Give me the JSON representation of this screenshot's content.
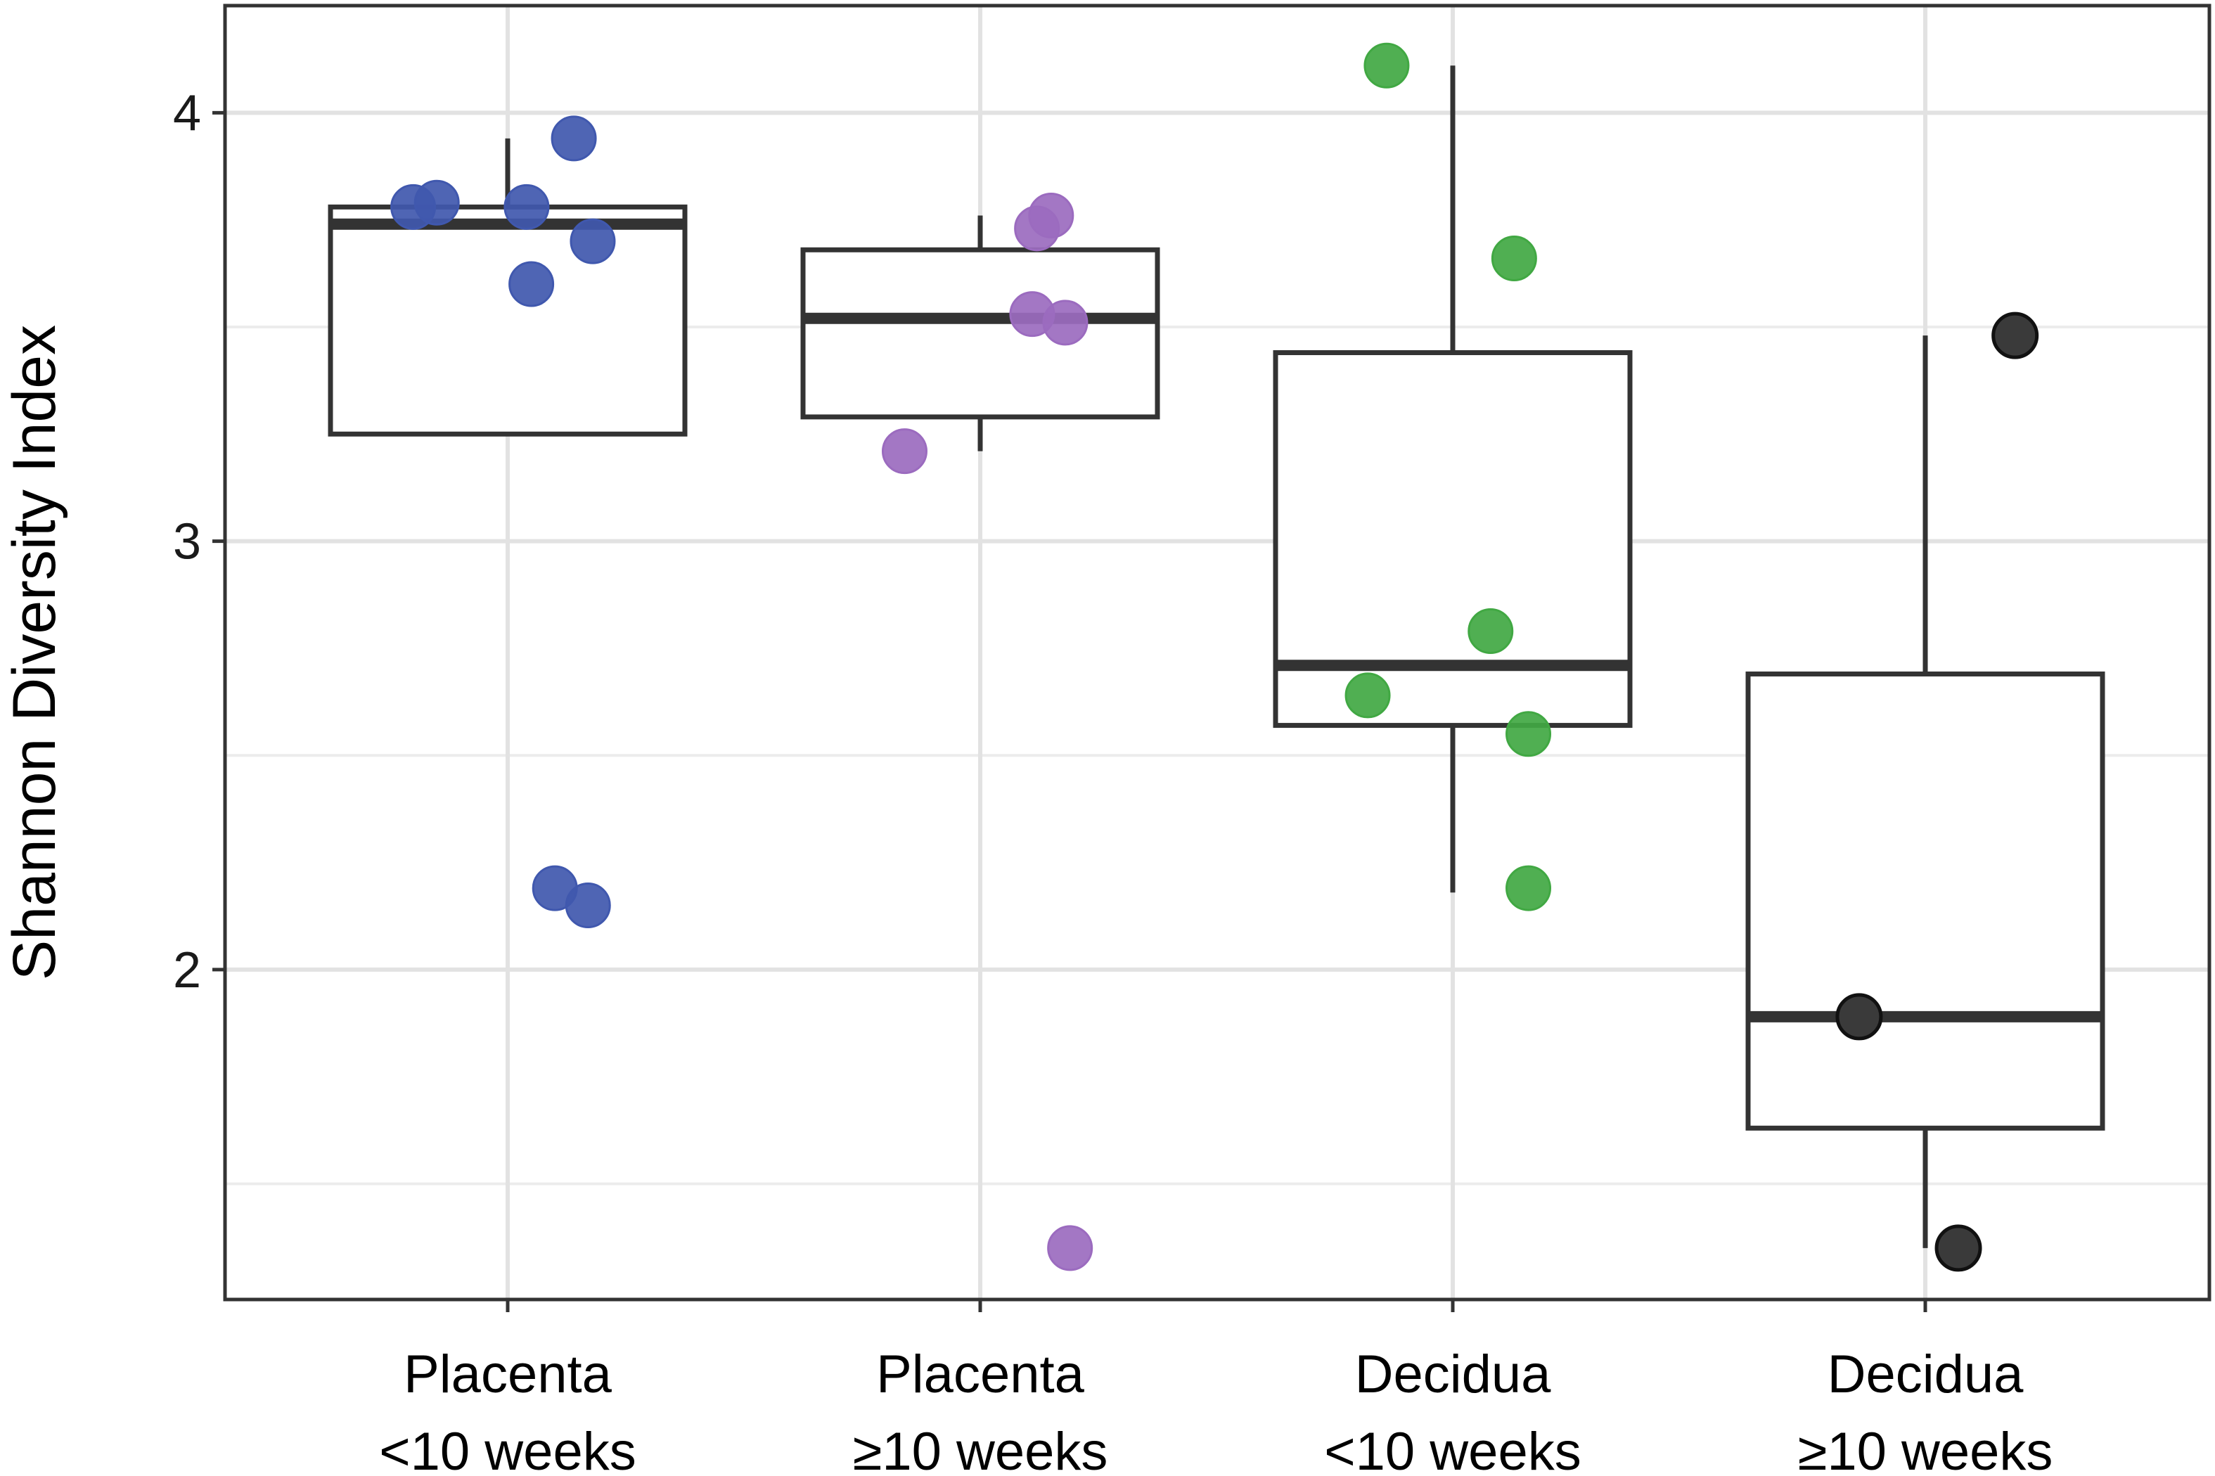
{
  "chart_data": {
    "type": "box",
    "title": "",
    "xlabel": "",
    "ylabel": "Shannon Diversity Index",
    "ylim": [
      1.23,
      4.25
    ],
    "yticks": [
      2,
      3,
      4
    ],
    "ytick_labels": [
      "2",
      "3",
      "4"
    ],
    "minor_gridlines": [
      1.5,
      2.5,
      3.5
    ],
    "grid": true,
    "legend": "none",
    "categories": [
      {
        "line1": "Placenta",
        "line2": "<10 weeks"
      },
      {
        "line1": "Placenta",
        "line2": "≥10 weeks"
      },
      {
        "line1": "Decidua",
        "line2": "<10 weeks"
      },
      {
        "line1": "Decidua",
        "line2": "≥10 weeks"
      }
    ],
    "boxes": [
      {
        "q1": 3.25,
        "median": 3.74,
        "q3": 3.78,
        "whisker_low": 3.25,
        "whisker_high": 3.94
      },
      {
        "q1": 3.29,
        "median": 3.52,
        "q3": 3.68,
        "whisker_low": 3.21,
        "whisker_high": 3.76
      },
      {
        "q1": 2.57,
        "median": 2.71,
        "q3": 3.44,
        "whisker_low": 2.18,
        "whisker_high": 4.11
      },
      {
        "q1": 1.63,
        "median": 1.89,
        "q3": 2.69,
        "whisker_low": 1.35,
        "whisker_high": 3.48
      }
    ],
    "series": [
      {
        "name": "Placenta <10 weeks",
        "color": "#4058ae",
        "points": [
          {
            "x": -0.2,
            "y": 3.78
          },
          {
            "x": -0.15,
            "y": 3.79
          },
          {
            "x": 0.04,
            "y": 3.78
          },
          {
            "x": 0.14,
            "y": 3.94
          },
          {
            "x": 0.18,
            "y": 3.7
          },
          {
            "x": 0.05,
            "y": 3.6
          },
          {
            "x": 0.1,
            "y": 2.19
          },
          {
            "x": 0.17,
            "y": 2.15
          }
        ]
      },
      {
        "name": "Placenta ≥10 weeks",
        "color": "#9b6bbf",
        "points": [
          {
            "x": 0.12,
            "y": 3.73
          },
          {
            "x": 0.15,
            "y": 3.76
          },
          {
            "x": 0.11,
            "y": 3.53
          },
          {
            "x": 0.18,
            "y": 3.51
          },
          {
            "x": -0.16,
            "y": 3.21
          },
          {
            "x": 0.19,
            "y": 1.35
          }
        ]
      },
      {
        "name": "Decidua <10 weeks",
        "color": "#41a843",
        "points": [
          {
            "x": -0.14,
            "y": 4.11
          },
          {
            "x": 0.13,
            "y": 3.66
          },
          {
            "x": 0.08,
            "y": 2.79
          },
          {
            "x": -0.18,
            "y": 2.64
          },
          {
            "x": 0.16,
            "y": 2.55
          },
          {
            "x": 0.16,
            "y": 2.19
          }
        ]
      },
      {
        "name": "Decidua ≥10 weeks",
        "color": "#3a3a3a",
        "points": [
          {
            "x": 0.19,
            "y": 3.48
          },
          {
            "x": -0.14,
            "y": 1.89
          },
          {
            "x": 0.07,
            "y": 1.35
          }
        ]
      }
    ]
  }
}
